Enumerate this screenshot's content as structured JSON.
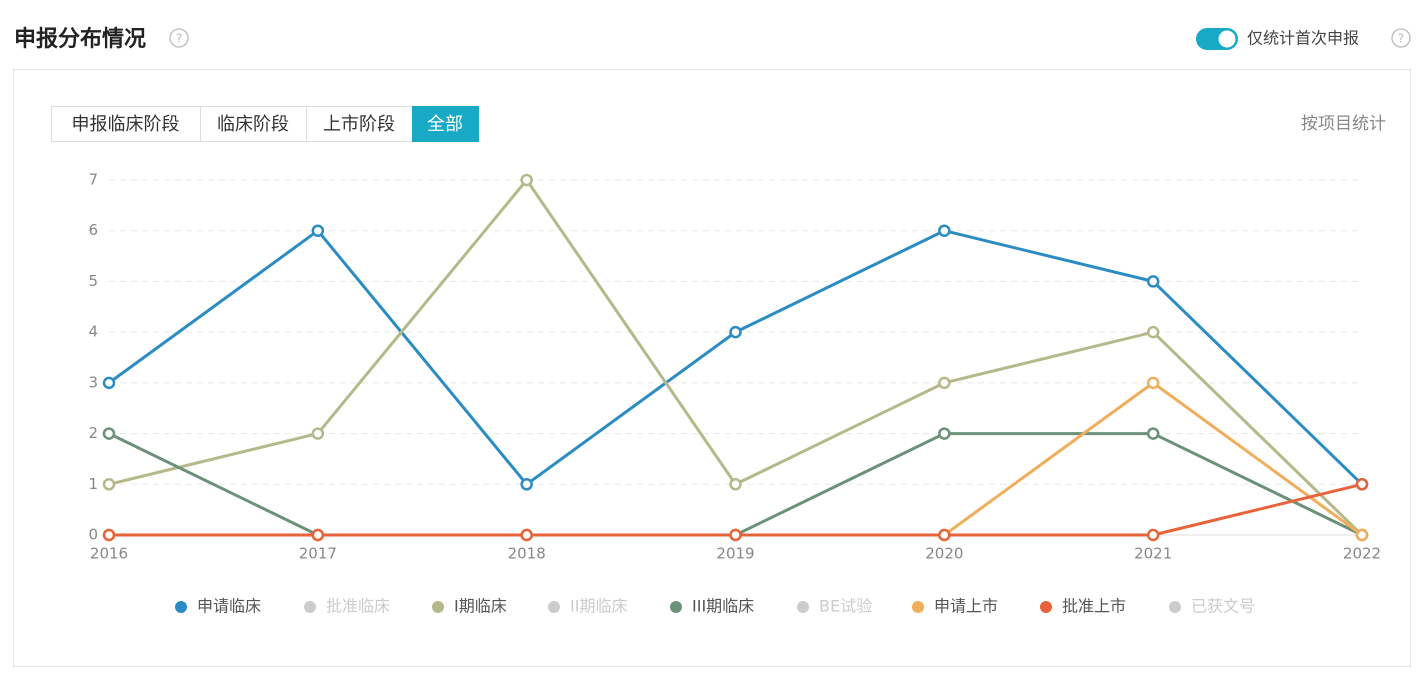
{
  "header": {
    "title": "申报分布情况",
    "toggle_label": "仅统计首次申报"
  },
  "tabs": [
    "申报临床阶段",
    "临床阶段",
    "上市阶段",
    "全部"
  ],
  "active_tab": 3,
  "side_link": "按项目统计",
  "chart_data": {
    "type": "line",
    "categories": [
      "2016",
      "2017",
      "2018",
      "2019",
      "2020",
      "2021",
      "2022"
    ],
    "ylim": [
      0,
      7
    ],
    "yticks": [
      0,
      1,
      2,
      3,
      4,
      5,
      6,
      7
    ],
    "grid": true,
    "legend": "bottom",
    "series": [
      {
        "name": "申请临床",
        "color": "#2b8cc4",
        "values": [
          3,
          6,
          1,
          4,
          6,
          5,
          1
        ]
      },
      {
        "name": "批准临床",
        "color": "#cccccc",
        "visible": false
      },
      {
        "name": "I期临床",
        "color": "#b5b98a",
        "values": [
          1,
          2,
          7,
          1,
          3,
          4,
          0
        ]
      },
      {
        "name": "II期临床",
        "color": "#cccccc",
        "visible": false
      },
      {
        "name": "III期临床",
        "color": "#6b9179",
        "values": [
          2,
          0,
          0,
          0,
          2,
          2,
          0
        ]
      },
      {
        "name": "BE试验",
        "color": "#cccccc",
        "visible": false
      },
      {
        "name": "申请上市",
        "color": "#f0ad5a",
        "values": [
          0,
          0,
          0,
          0,
          0,
          3,
          0
        ]
      },
      {
        "name": "批准上市",
        "color": "#e8623a",
        "values": [
          0,
          0,
          0,
          0,
          0,
          0,
          1
        ]
      },
      {
        "name": "已获文号",
        "color": "#cccccc",
        "visible": false
      }
    ]
  }
}
